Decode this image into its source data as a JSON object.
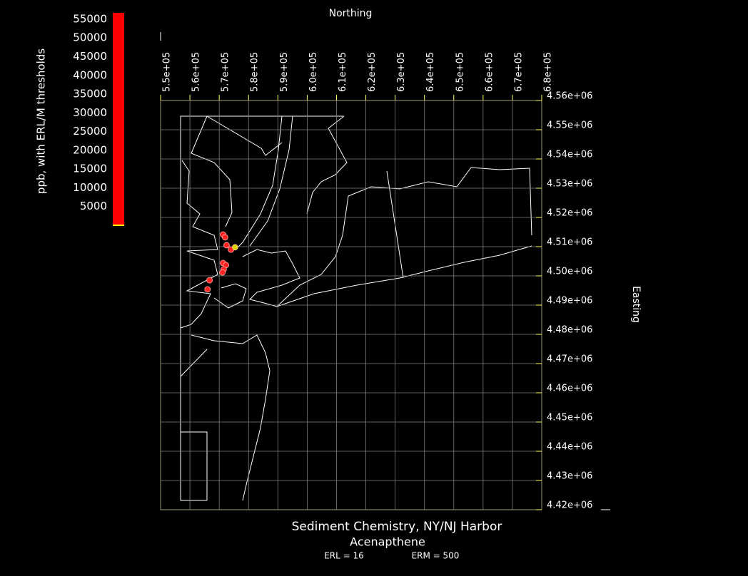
{
  "chart_data": {
    "type": "scatter",
    "title": "Sediment Chemistry, NY/NJ Harbor",
    "subtitle": "Acenapthene",
    "annotations": [
      "ERL = 16",
      "ERM = 500"
    ],
    "x_label": "Northing",
    "y_label": "Easting",
    "x": [
      571300,
      572000,
      572500,
      574000,
      575400,
      571300,
      572300,
      571500,
      571100,
      566700,
      566000
    ],
    "y": [
      4514150,
      4513200,
      4510500,
      4509000,
      4509800,
      4504400,
      4503700,
      4502200,
      4501200,
      4498500,
      4495400
    ],
    "point_colors": [
      "#ff2020",
      "#ff2020",
      "#ff2020",
      "#ff2020",
      "#d8d800",
      "#ff2020",
      "#ff2020",
      "#ff2020",
      "#ff2020",
      "#ff2020",
      "#ff2020"
    ],
    "xlim": [
      550000,
      680000
    ],
    "xticks": [
      {
        "value": 550000,
        "label": "5.5e+05"
      },
      {
        "value": 560000,
        "label": "5.6e+05"
      },
      {
        "value": 570000,
        "label": "5.7e+05"
      },
      {
        "value": 580000,
        "label": "5.8e+05"
      },
      {
        "value": 590000,
        "label": "5.9e+05"
      },
      {
        "value": 600000,
        "label": "6.0e+05"
      },
      {
        "value": 610000,
        "label": "6.1e+05"
      },
      {
        "value": 620000,
        "label": "6.2e+05"
      },
      {
        "value": 630000,
        "label": "6.3e+05"
      },
      {
        "value": 640000,
        "label": "6.4e+05"
      },
      {
        "value": 650000,
        "label": "6.5e+05"
      },
      {
        "value": 660000,
        "label": "6.6e+05"
      },
      {
        "value": 670000,
        "label": "6.7e+05"
      },
      {
        "value": 680000,
        "label": "6.8e+05"
      }
    ],
    "ylim": [
      4420000,
      4560000
    ],
    "yticks": [
      {
        "value": 4420000,
        "label": "4.42e+06"
      },
      {
        "value": 4430000,
        "label": "4.43e+06"
      },
      {
        "value": 4440000,
        "label": "4.44e+06"
      },
      {
        "value": 4450000,
        "label": "4.45e+06"
      },
      {
        "value": 4460000,
        "label": "4.46e+06"
      },
      {
        "value": 4470000,
        "label": "4.47e+06"
      },
      {
        "value": 4480000,
        "label": "4.48e+06"
      },
      {
        "value": 4490000,
        "label": "4.49e+06"
      },
      {
        "value": 4500000,
        "label": "4.50e+06"
      },
      {
        "value": 4510000,
        "label": "4.51e+06"
      },
      {
        "value": 4520000,
        "label": "4.52e+06"
      },
      {
        "value": 4530000,
        "label": "4.53e+06"
      },
      {
        "value": 4540000,
        "label": "4.54e+06"
      },
      {
        "value": 4550000,
        "label": "4.55e+06"
      },
      {
        "value": 4560000,
        "label": "4.56e+06"
      }
    ],
    "grid": true,
    "colorbar": {
      "label": "ppb, with ERL/M thresholds",
      "color": "#ff0000",
      "lim": [
        0,
        56700
      ],
      "ticks": [
        5000,
        10000,
        15000,
        20000,
        25000,
        30000,
        35000,
        40000,
        45000,
        50000,
        55000
      ]
    }
  }
}
